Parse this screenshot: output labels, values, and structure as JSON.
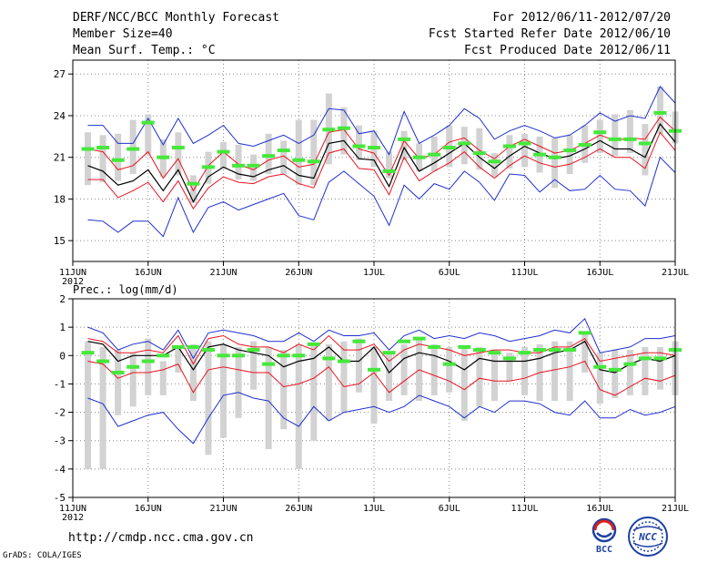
{
  "header": {
    "title": "DERF/NCC/BCC Monthly Forecast",
    "member_size": "Member Size=40",
    "variable": "Mean Surf. Temp.: °C",
    "period": "For 2012/06/11-2012/07/20",
    "started": "Fcst Started Refer Date 2012/06/10",
    "produced": "Fcst Produced Date 2012/06/11"
  },
  "footer": {
    "url": "http://cmdp.ncc.cma.gov.cn",
    "grads": "GrADS: COLA/IGES",
    "logo_left_text": "BCC",
    "logo_right_text": "NCC"
  },
  "colors": {
    "mean": "#000000",
    "spread": "#e8121e",
    "extreme": "#1f2fd0",
    "obs_bar": "#d2d2d2",
    "obs_marker": "#45e83a"
  },
  "chart_data": [
    {
      "type": "line",
      "title": "Mean Surf. Temp.: °C",
      "xlabel": "",
      "ylabel": "",
      "x_tick_labels": [
        "11JUN",
        "16JUN",
        "21JUN",
        "26JUN",
        "1JUL",
        "6JUL",
        "11JUL",
        "16JUL",
        "21JUL"
      ],
      "x_tick_days": [
        0,
        5,
        10,
        15,
        20,
        25,
        30,
        35,
        40
      ],
      "year_label": "2012",
      "ylim": [
        13.5,
        28
      ],
      "y_ticks": [
        15,
        18,
        21,
        24,
        27
      ],
      "x": [
        1,
        2,
        3,
        4,
        5,
        6,
        7,
        8,
        9,
        10,
        11,
        12,
        13,
        14,
        15,
        16,
        17,
        18,
        19,
        20,
        21,
        22,
        23,
        24,
        25,
        26,
        27,
        28,
        29,
        30,
        31,
        32,
        33,
        34,
        35,
        36,
        37,
        38,
        39,
        40
      ],
      "series": [
        {
          "name": "max",
          "values": [
            23.3,
            23.3,
            22.0,
            22.0,
            23.8,
            21.9,
            23.8,
            22.0,
            22.6,
            23.3,
            22.0,
            21.8,
            22.2,
            22.6,
            22.0,
            22.6,
            24.5,
            24.4,
            22.7,
            22.9,
            21.2,
            24.3,
            22.0,
            22.6,
            23.3,
            24.5,
            23.8,
            22.3,
            22.9,
            23.3,
            22.9,
            22.4,
            22.6,
            23.3,
            24.2,
            23.6,
            24.0,
            23.8,
            26.1,
            24.9
          ]
        },
        {
          "name": "upper",
          "values": [
            21.6,
            21.4,
            20.1,
            20.4,
            21.4,
            19.5,
            20.9,
            18.6,
            20.4,
            21.4,
            20.5,
            20.1,
            20.8,
            21.1,
            20.3,
            20.5,
            22.8,
            23.0,
            21.6,
            21.3,
            19.7,
            22.2,
            20.9,
            21.2,
            22.1,
            22.4,
            21.5,
            20.9,
            21.8,
            22.3,
            21.8,
            21.3,
            21.5,
            22.0,
            22.6,
            22.2,
            22.4,
            22.3,
            23.9,
            22.9
          ]
        },
        {
          "name": "mean",
          "values": [
            20.4,
            20.0,
            19.0,
            19.3,
            20.1,
            18.6,
            20.1,
            17.8,
            19.6,
            20.3,
            19.8,
            19.6,
            20.1,
            20.4,
            19.7,
            19.5,
            22.0,
            22.2,
            20.9,
            20.8,
            18.9,
            21.7,
            20.0,
            20.6,
            21.3,
            22.0,
            21.0,
            20.2,
            21.1,
            21.8,
            21.3,
            20.9,
            21.1,
            21.6,
            22.2,
            21.6,
            21.6,
            21.0,
            23.4,
            22.1
          ]
        },
        {
          "name": "lower",
          "values": [
            19.4,
            19.4,
            18.1,
            18.6,
            19.2,
            17.8,
            19.3,
            17.3,
            18.8,
            19.6,
            19.2,
            19.1,
            19.6,
            19.8,
            19.1,
            18.8,
            21.3,
            21.6,
            20.2,
            20.1,
            18.3,
            21.0,
            19.3,
            20.0,
            20.6,
            21.4,
            20.3,
            19.5,
            20.4,
            21.1,
            20.6,
            20.3,
            20.5,
            21.0,
            21.6,
            21.0,
            21.0,
            20.2,
            22.8,
            21.5
          ]
        },
        {
          "name": "min",
          "values": [
            16.5,
            16.4,
            15.6,
            16.4,
            16.4,
            15.3,
            18.1,
            15.6,
            17.4,
            17.8,
            17.2,
            17.6,
            18.0,
            18.4,
            16.8,
            16.5,
            19.2,
            20.0,
            19.1,
            18.2,
            16.1,
            19.0,
            18.0,
            19.1,
            18.7,
            20.0,
            19.2,
            17.9,
            19.8,
            19.7,
            18.5,
            19.4,
            18.6,
            18.7,
            19.7,
            18.7,
            18.6,
            17.5,
            21.0,
            19.9
          ]
        },
        {
          "name": "obs_marker",
          "values": [
            21.6,
            21.7,
            20.8,
            21.6,
            23.5,
            21.0,
            21.7,
            19.1,
            20.3,
            21.4,
            20.4,
            20.4,
            21.1,
            21.5,
            20.8,
            20.7,
            23.0,
            23.1,
            21.8,
            21.7,
            20.0,
            22.3,
            21.0,
            21.2,
            21.7,
            22.0,
            21.3,
            20.7,
            21.8,
            22.0,
            21.2,
            21.0,
            21.5,
            21.9,
            22.8,
            22.3,
            22.3,
            22.0,
            24.2,
            22.9
          ]
        },
        {
          "name": "obs_bar_low",
          "values": [
            19.0,
            19.2,
            19.3,
            19.8,
            21.2,
            19.6,
            19.7,
            17.7,
            19.1,
            20.2,
            19.4,
            19.3,
            19.8,
            19.8,
            19.0,
            19.0,
            20.5,
            21.2,
            20.8,
            20.3,
            19.5,
            20.8,
            20.0,
            20.0,
            20.3,
            20.5,
            20.1,
            19.6,
            20.2,
            20.3,
            19.9,
            18.8,
            19.8,
            20.6,
            21.3,
            21.1,
            21.3,
            19.7,
            22.7,
            22.0
          ]
        },
        {
          "name": "obs_bar_high",
          "values": [
            22.8,
            22.6,
            22.7,
            23.7,
            24.1,
            22.3,
            22.8,
            19.7,
            21.4,
            22.1,
            21.9,
            21.2,
            22.7,
            22.2,
            23.7,
            23.7,
            25.6,
            24.6,
            23.3,
            22.9,
            21.4,
            22.9,
            22.0,
            22.5,
            23.3,
            23.2,
            23.1,
            21.3,
            22.6,
            22.7,
            22.5,
            22.4,
            22.6,
            23.3,
            23.7,
            24.1,
            24.4,
            23.4,
            26.1,
            24.3
          ]
        }
      ]
    },
    {
      "type": "line",
      "title": "Prec.: log(mm/d)",
      "xlabel": "",
      "ylabel": "",
      "x_tick_labels": [
        "11JUN",
        "16JUN",
        "21JUN",
        "26JUN",
        "1JUL",
        "6JUL",
        "11JUL",
        "16JUL",
        "21JUL"
      ],
      "x_tick_days": [
        0,
        5,
        10,
        15,
        20,
        25,
        30,
        35,
        40
      ],
      "year_label": "2012",
      "ylim": [
        -5,
        2
      ],
      "y_ticks": [
        -5,
        -4,
        -3,
        -2,
        -1,
        0,
        1,
        2
      ],
      "x": [
        1,
        2,
        3,
        4,
        5,
        6,
        7,
        8,
        9,
        10,
        11,
        12,
        13,
        14,
        15,
        16,
        17,
        18,
        19,
        20,
        21,
        22,
        23,
        24,
        25,
        26,
        27,
        28,
        29,
        30,
        31,
        32,
        33,
        34,
        35,
        36,
        37,
        38,
        39,
        40
      ],
      "series": [
        {
          "name": "max",
          "values": [
            1.0,
            0.8,
            0.2,
            0.4,
            0.5,
            0.2,
            0.9,
            -0.1,
            0.8,
            0.9,
            0.8,
            0.7,
            0.5,
            0.5,
            0.8,
            0.5,
            0.9,
            0.7,
            0.7,
            0.8,
            0.2,
            0.7,
            0.9,
            0.6,
            0.7,
            0.6,
            0.8,
            0.7,
            0.5,
            0.6,
            0.7,
            0.9,
            0.8,
            1.3,
            0.1,
            0.2,
            0.3,
            0.6,
            0.6,
            0.7
          ]
        },
        {
          "name": "upper",
          "values": [
            0.6,
            0.5,
            0.1,
            0.1,
            0.2,
            0.1,
            0.7,
            -0.3,
            0.6,
            0.7,
            0.4,
            0.3,
            0.3,
            0.1,
            0.4,
            0.2,
            0.7,
            0.2,
            0.2,
            0.4,
            -0.2,
            0.2,
            0.4,
            0.3,
            0.2,
            0.0,
            0.1,
            0.2,
            0.2,
            0.1,
            0.1,
            0.3,
            0.3,
            0.6,
            -0.2,
            -0.1,
            0.0,
            0.1,
            0.1,
            0.0
          ]
        },
        {
          "name": "mean",
          "values": [
            0.5,
            0.4,
            -0.2,
            0.0,
            0.0,
            0.0,
            0.3,
            -0.5,
            0.3,
            0.4,
            0.2,
            0.1,
            0.0,
            -0.4,
            -0.2,
            -0.1,
            0.3,
            -0.2,
            -0.2,
            0.3,
            -0.6,
            -0.1,
            0.1,
            0.0,
            -0.2,
            -0.5,
            -0.1,
            -0.2,
            -0.2,
            -0.2,
            -0.1,
            0.1,
            0.2,
            0.5,
            -0.5,
            -0.6,
            -0.3,
            -0.1,
            -0.2,
            0.0
          ]
        },
        {
          "name": "lower",
          "values": [
            -0.2,
            -0.3,
            -0.8,
            -0.6,
            -0.6,
            -0.5,
            -0.3,
            -1.3,
            -0.5,
            -0.4,
            -0.5,
            -0.6,
            -0.6,
            -1.1,
            -1.0,
            -0.8,
            -0.4,
            -1.1,
            -1.0,
            -0.6,
            -1.3,
            -0.9,
            -0.5,
            -0.7,
            -0.9,
            -1.2,
            -0.8,
            -0.9,
            -0.9,
            -0.8,
            -0.6,
            -0.5,
            -0.4,
            -0.2,
            -1.2,
            -1.4,
            -1.1,
            -0.8,
            -0.9,
            -0.7
          ]
        },
        {
          "name": "min",
          "values": [
            -1.5,
            -1.7,
            -2.5,
            -2.3,
            -2.1,
            -2.0,
            -2.6,
            -3.1,
            -2.2,
            -1.4,
            -1.3,
            -1.5,
            -1.6,
            -2.2,
            -2.5,
            -1.8,
            -2.3,
            -2.0,
            -1.9,
            -1.8,
            -2.0,
            -1.8,
            -1.4,
            -1.6,
            -1.8,
            -2.2,
            -1.8,
            -2.0,
            -1.6,
            -1.6,
            -1.7,
            -2.0,
            -2.1,
            -1.6,
            -2.2,
            -2.2,
            -1.9,
            -2.1,
            -2.0,
            -1.8
          ]
        },
        {
          "name": "obs_marker",
          "values": [
            0.1,
            -0.2,
            -0.6,
            -0.4,
            -0.2,
            0.0,
            0.3,
            0.3,
            0.2,
            0.0,
            0.0,
            0.2,
            -0.3,
            0.0,
            0.0,
            0.4,
            -0.1,
            -0.2,
            0.5,
            -0.5,
            0.1,
            0.5,
            0.6,
            0.3,
            -0.3,
            0.3,
            0.2,
            0.1,
            -0.1,
            0.1,
            0.2,
            0.2,
            0.2,
            0.8,
            -0.4,
            -0.5,
            -0.3,
            -0.1,
            -0.1,
            0.2
          ]
        },
        {
          "name": "obs_bar_low",
          "values": [
            -4.0,
            -4.0,
            -2.1,
            -1.8,
            -1.4,
            -1.4,
            -0.6,
            -1.6,
            -3.5,
            -2.9,
            -2.2,
            -1.2,
            -3.3,
            -2.6,
            -4.0,
            -3.0,
            -2.3,
            -2.0,
            -1.3,
            -2.4,
            -1.6,
            -1.4,
            -1.6,
            -1.4,
            -1.3,
            -2.3,
            -1.8,
            -1.6,
            -0.9,
            -1.4,
            -1.6,
            -1.6,
            -1.6,
            -0.6,
            -1.7,
            -1.5,
            -1.4,
            -1.4,
            -1.2,
            -1.4
          ]
        },
        {
          "name": "obs_bar_high",
          "values": [
            0.5,
            0.3,
            0.2,
            0.1,
            0.6,
            -0.2,
            0.3,
            0.4,
            0.5,
            0.4,
            0.3,
            0.5,
            0.3,
            0.2,
            0.4,
            0.4,
            0.4,
            0.5,
            0.6,
            0.3,
            0.1,
            0.4,
            0.6,
            0.4,
            0.3,
            0.3,
            0.3,
            0.2,
            0.1,
            0.3,
            0.4,
            0.5,
            0.5,
            0.8,
            0.1,
            0.2,
            0.2,
            0.3,
            0.3,
            0.5
          ]
        }
      ]
    }
  ]
}
